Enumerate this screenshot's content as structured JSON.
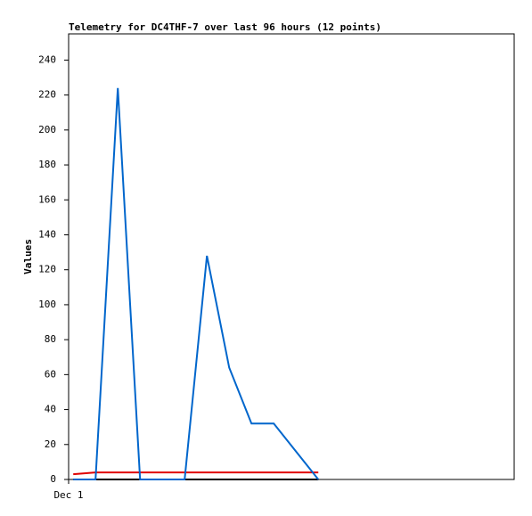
{
  "chart_data": {
    "type": "line",
    "title": "Telemetry for DC4THF-7 over last 96 hours (12 points)",
    "y_label": "Values",
    "x": [
      1,
      5.8,
      10.6,
      15.4,
      20.2,
      25,
      29.8,
      34.6,
      39.4,
      44.2,
      49,
      53.8
    ],
    "series": [
      {
        "color": "#000000",
        "values": [
          0,
          0,
          0,
          0,
          0,
          0,
          0,
          0,
          0,
          0,
          0,
          0
        ]
      },
      {
        "color": "#e00000",
        "values": [
          3,
          4,
          4,
          4,
          4,
          4,
          4,
          4,
          4,
          4,
          4,
          4
        ]
      },
      {
        "color": "#0066cc",
        "values": [
          0,
          0,
          224,
          0,
          0,
          0,
          128,
          64,
          32,
          32,
          16,
          0
        ]
      }
    ],
    "xlim": [
      0,
      96
    ],
    "xticks": [
      {
        "value": 0,
        "label": "Dec 1"
      }
    ],
    "ylim": [
      0,
      255
    ],
    "yticks": [
      0,
      20,
      40,
      60,
      80,
      100,
      120,
      140,
      160,
      180,
      200,
      220,
      240
    ],
    "grid": false
  }
}
